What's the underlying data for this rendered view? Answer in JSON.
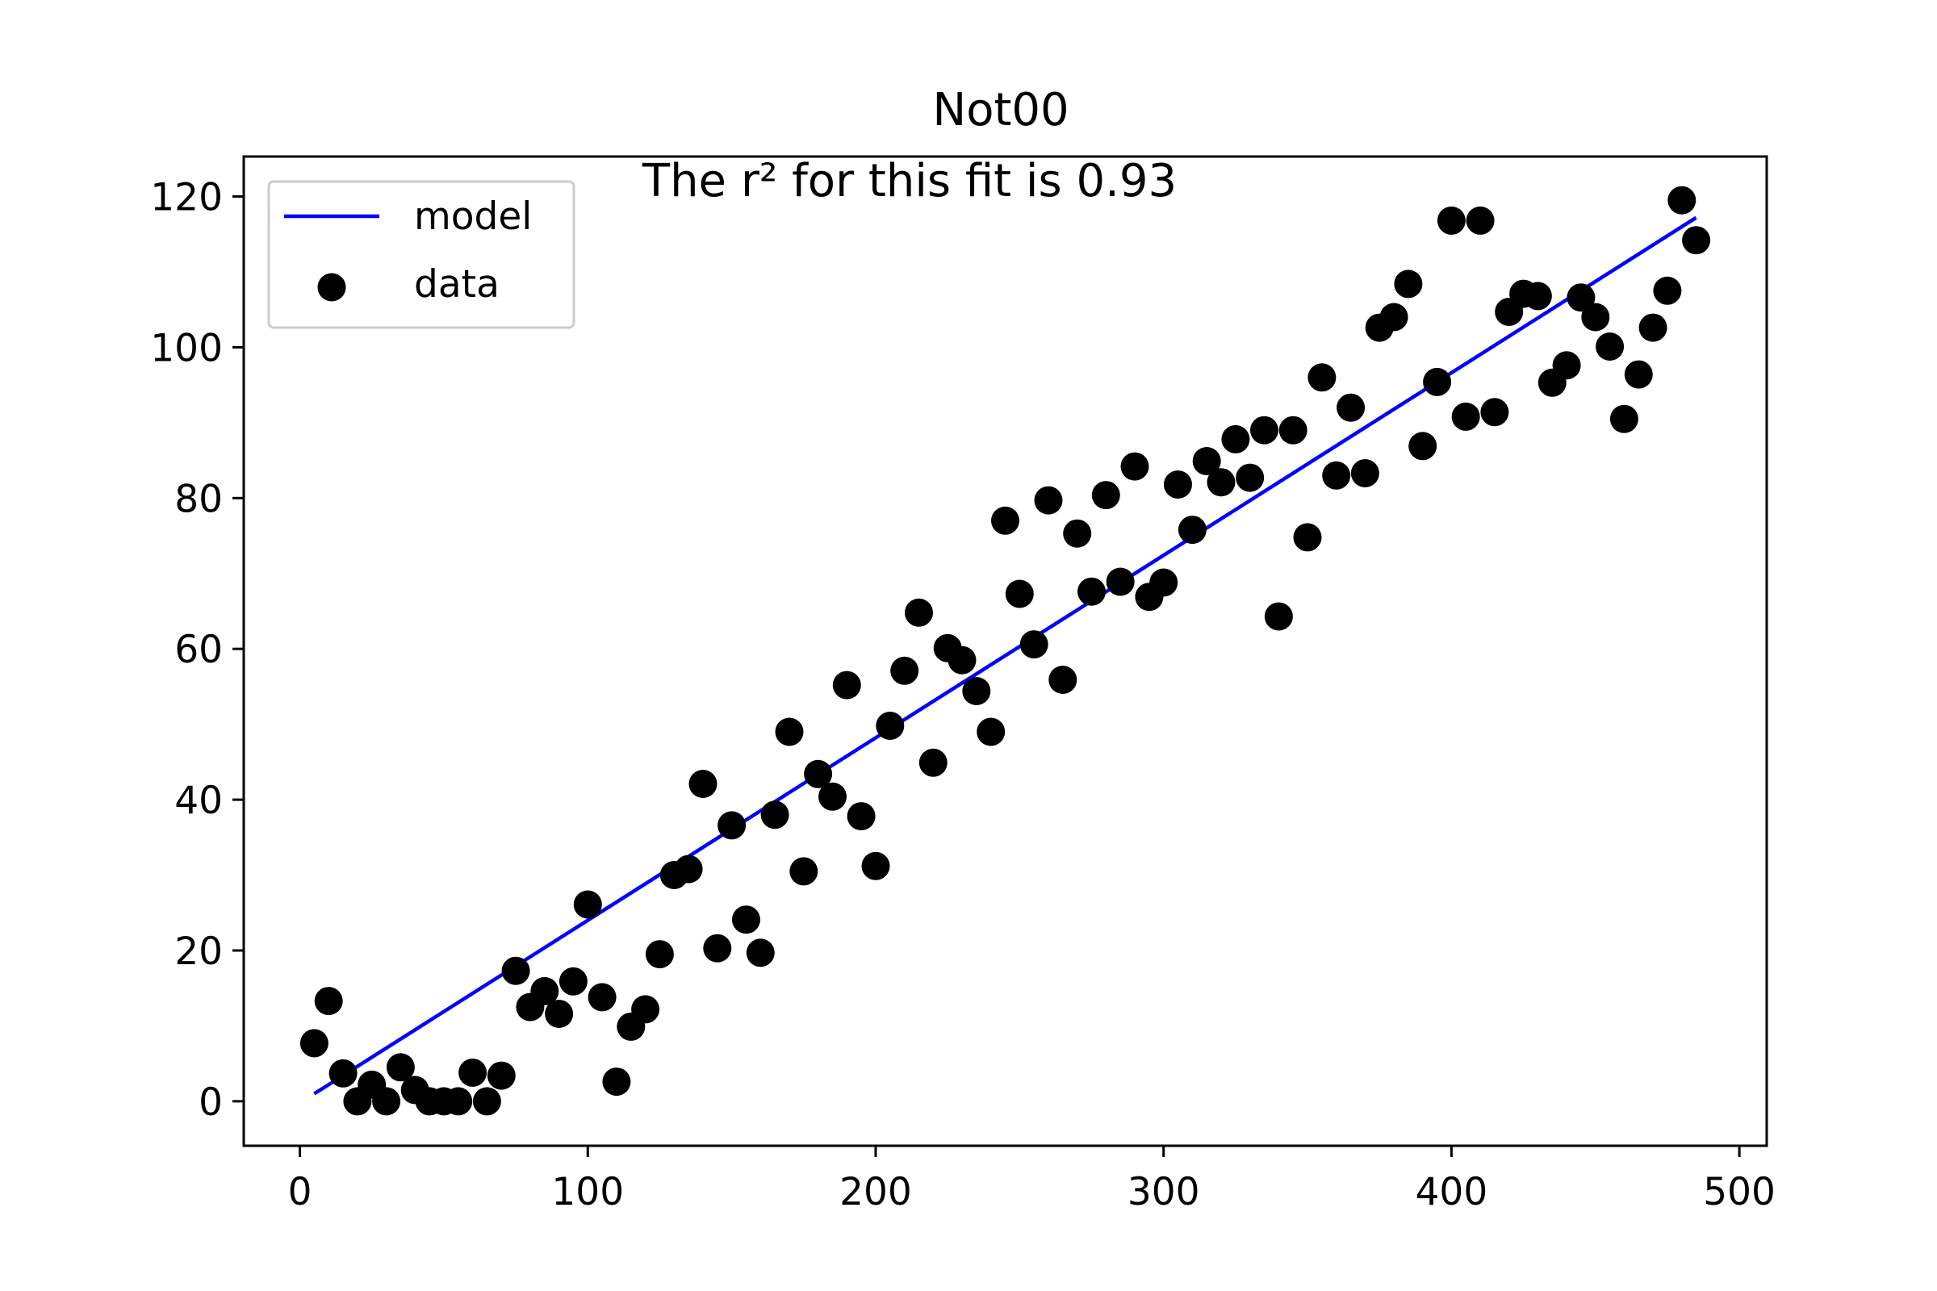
{
  "chart_data": {
    "type": "scatter",
    "title": "Not00",
    "annotation": "The r² for this fit is 0.93",
    "xlabel": "",
    "ylabel": "",
    "xlim": [
      -19.5,
      509.5
    ],
    "ylim": [
      -5.9,
      125.3
    ],
    "xticks": [
      0,
      100,
      200,
      300,
      400,
      500
    ],
    "yticks": [
      0,
      20,
      40,
      60,
      80,
      100,
      120
    ],
    "grid": false,
    "legend_position": "top-left",
    "colors": {
      "model": "#0000ff",
      "data": "#000000"
    },
    "series": [
      {
        "name": "model",
        "kind": "line",
        "x": [
          5,
          485
        ],
        "y": [
          1.0,
          117.2
        ]
      },
      {
        "name": "data",
        "kind": "scatter",
        "x": [
          5,
          10,
          15,
          20,
          25,
          30,
          35,
          40,
          45,
          50,
          55,
          60,
          65,
          70,
          75,
          80,
          85,
          90,
          95,
          100,
          105,
          110,
          115,
          120,
          125,
          130,
          135,
          140,
          145,
          150,
          155,
          160,
          165,
          170,
          175,
          180,
          185,
          190,
          195,
          200,
          205,
          210,
          215,
          220,
          225,
          230,
          235,
          240,
          245,
          250,
          255,
          260,
          265,
          270,
          275,
          280,
          285,
          290,
          295,
          300,
          305,
          310,
          315,
          320,
          325,
          330,
          335,
          340,
          345,
          350,
          355,
          360,
          365,
          370,
          375,
          380,
          385,
          390,
          395,
          400,
          405,
          410,
          415,
          420,
          425,
          430,
          435,
          440,
          445,
          450,
          455,
          460,
          465,
          470,
          475,
          480,
          485
        ],
        "y": [
          7.7,
          13.3,
          3.7,
          0,
          2.2,
          0,
          4.5,
          1.5,
          0,
          0,
          0,
          3.8,
          0,
          3.4,
          17.3,
          12.5,
          14.6,
          11.6,
          15.9,
          26.1,
          13.8,
          2.6,
          9.9,
          12.2,
          19.5,
          30.0,
          30.8,
          42.1,
          20.3,
          36.6,
          24.1,
          19.7,
          38.0,
          49.0,
          30.5,
          43.4,
          40.4,
          55.2,
          37.8,
          31.2,
          49.8,
          57.1,
          64.8,
          44.9,
          60.1,
          58.5,
          54.4,
          49.0,
          77.0,
          67.3,
          60.6,
          79.7,
          55.9,
          75.3,
          67.6,
          80.4,
          68.9,
          84.2,
          66.9,
          68.8,
          81.8,
          75.8,
          84.9,
          82.1,
          87.8,
          82.7,
          89.0,
          64.3,
          89.0,
          74.8,
          96.0,
          83.0,
          92.0,
          83.3,
          102.6,
          104.0,
          108.4,
          86.9,
          95.4,
          116.8,
          90.8,
          116.8,
          91.4,
          104.7,
          107.1,
          106.8,
          95.3,
          97.6,
          106.6,
          104.0,
          100.1,
          90.5,
          96.4,
          102.6,
          107.5,
          119.5,
          114.2
        ]
      }
    ]
  }
}
